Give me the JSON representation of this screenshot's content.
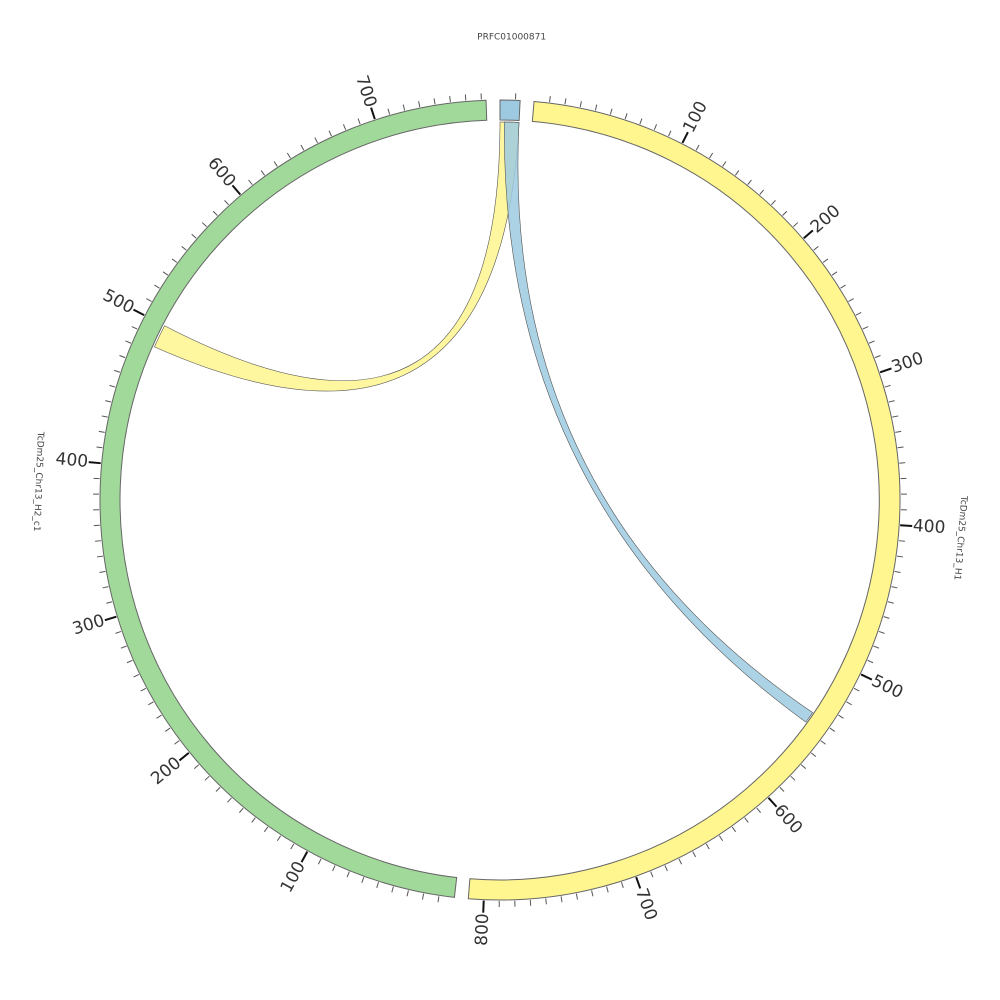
{
  "chart_data": {
    "type": "chord",
    "tick_spacing": 10,
    "segments": [
      {
        "name": "PRFC01000871",
        "color": "#9ecae1",
        "length": 13,
        "ticks": []
      },
      {
        "name": "TcDm25_Chr13_H1",
        "color": "#fff68f",
        "length": 810,
        "ticks": [
          100,
          200,
          300,
          400,
          500,
          600,
          700,
          800
        ]
      },
      {
        "name": "TcDm25_Chr13_H2_c1",
        "color": "#a1d99b",
        "length": 773,
        "ticks": [
          100,
          200,
          300,
          400,
          500,
          600,
          700
        ]
      }
    ],
    "links": [
      {
        "source": "PRFC01000871",
        "source_range": [
          0,
          13
        ],
        "target": "TcDm25_Chr13_H2_c1",
        "target_range": [
          484,
          500
        ],
        "color": "#fff68f"
      },
      {
        "source": "PRFC01000871",
        "source_range": [
          3,
          13
        ],
        "target": "TcDm25_Chr13_H1",
        "target_range": [
          538,
          546
        ],
        "color": "#9ecae1"
      }
    ]
  }
}
